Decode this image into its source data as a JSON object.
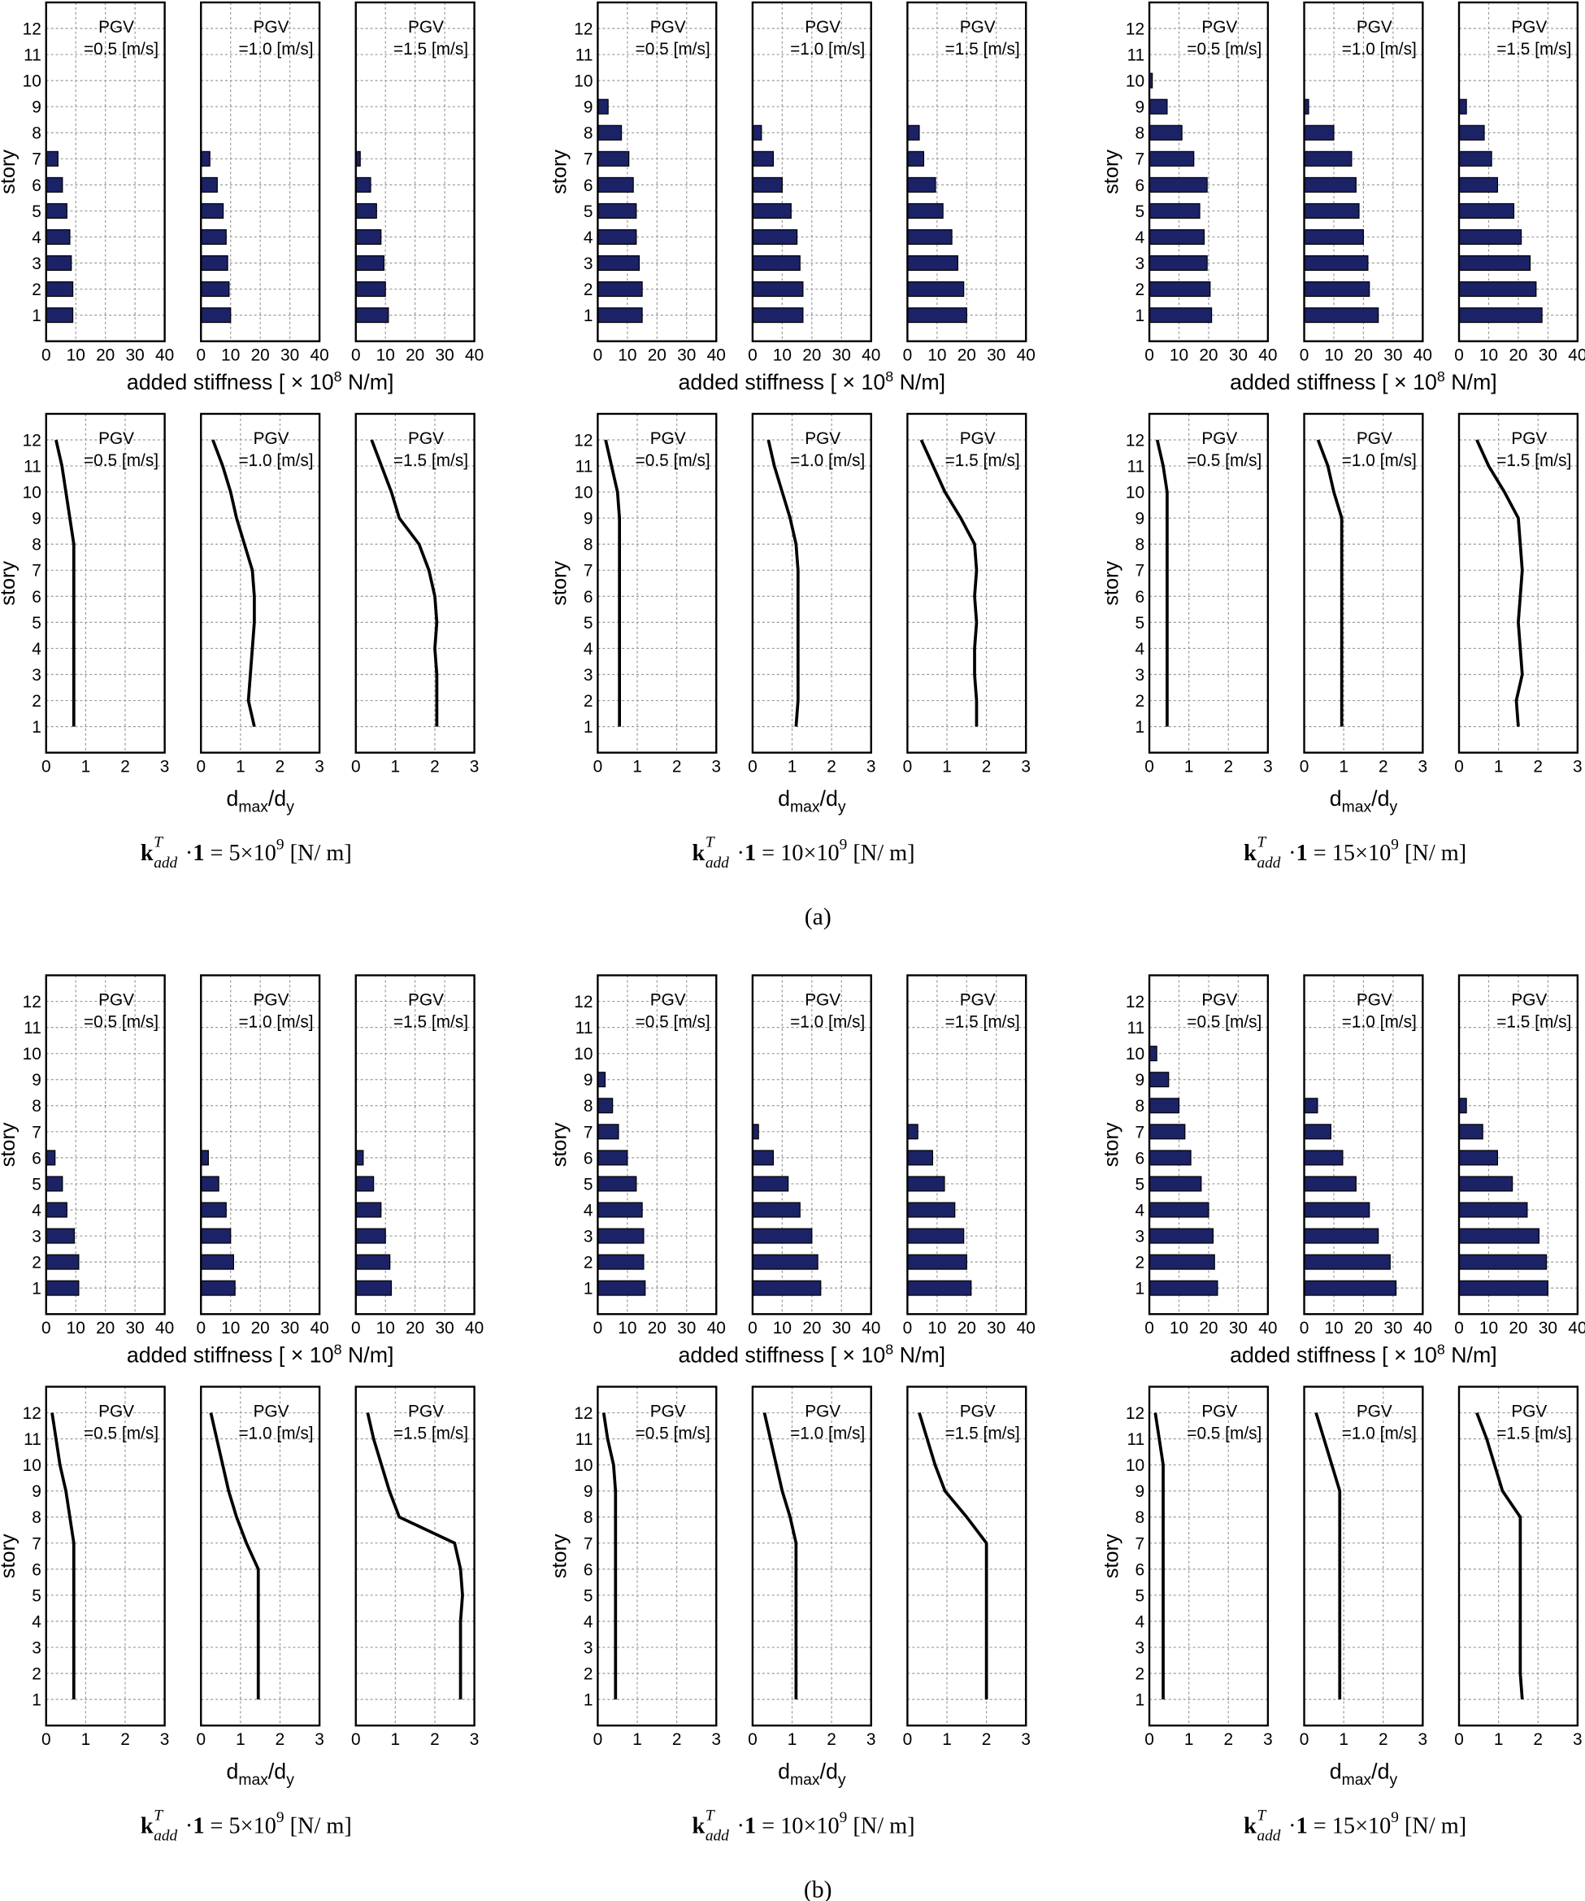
{
  "figure": {
    "story_axis": {
      "label": "story",
      "ylim": [
        0,
        13
      ],
      "yticks": [
        1,
        2,
        3,
        4,
        5,
        6,
        7,
        8,
        9,
        10,
        11,
        12
      ]
    },
    "bar_axis": {
      "xlim": [
        0,
        40
      ],
      "xticks": [
        0,
        10,
        20,
        30,
        40
      ],
      "label": {
        "text": "added stiffness [ × 10",
        "sup": "8",
        "rest": " N/m]"
      }
    },
    "line_axis": {
      "xlim": [
        0,
        3
      ],
      "xticks": [
        0,
        1,
        2,
        3
      ],
      "label": {
        "d": "d",
        "sub1": "max",
        "slash": "/d",
        "sub2": "y"
      }
    },
    "parts": [
      {
        "label": "(a)",
        "groups": [
          {
            "caption": {
              "k": "k",
              "sup": "T",
              "sub": "add",
              "mid": "·",
              "one": "1",
              "eq": " = 5×10",
              "exp": "9",
              "unit": " [N/ m]"
            },
            "bar_panels": [
              {
                "title": [
                  "PGV",
                  "=0.5 [m/s]"
                ],
                "values": [
                  9,
                  9,
                  8.5,
                  8,
                  7,
                  5.5,
                  4,
                  0,
                  0,
                  0,
                  0,
                  0
                ]
              },
              {
                "title": [
                  "PGV",
                  "=1.0 [m/s]"
                ],
                "values": [
                  10,
                  9.5,
                  9,
                  8.5,
                  7.5,
                  5.5,
                  3,
                  0,
                  0,
                  0,
                  0,
                  0
                ]
              },
              {
                "title": [
                  "PGV",
                  "=1.5 [m/s]"
                ],
                "values": [
                  11,
                  10,
                  9.5,
                  8.5,
                  7,
                  5,
                  1.5,
                  0,
                  0,
                  0,
                  0,
                  0
                ]
              }
            ],
            "line_panels": [
              {
                "title": [
                  "PGV",
                  "=0.5 [m/s]"
                ],
                "values": [
                  0.7,
                  0.7,
                  0.7,
                  0.7,
                  0.7,
                  0.7,
                  0.7,
                  0.7,
                  0.6,
                  0.5,
                  0.4,
                  0.25
                ]
              },
              {
                "title": [
                  "PGV",
                  "=1.0 [m/s]"
                ],
                "values": [
                  1.35,
                  1.2,
                  1.25,
                  1.3,
                  1.35,
                  1.35,
                  1.3,
                  1.1,
                  0.9,
                  0.75,
                  0.55,
                  0.3
                ]
              },
              {
                "title": [
                  "PGV",
                  "=1.5 [m/s]"
                ],
                "values": [
                  2.05,
                  2.05,
                  2.05,
                  2.0,
                  2.05,
                  2.0,
                  1.85,
                  1.6,
                  1.1,
                  0.9,
                  0.65,
                  0.4
                ]
              }
            ]
          },
          {
            "caption": {
              "k": "k",
              "sup": "T",
              "sub": "add",
              "mid": "·",
              "one": "1",
              "eq": " = 10×10",
              "exp": "9",
              "unit": " [N/ m]"
            },
            "bar_panels": [
              {
                "title": [
                  "PGV",
                  "=0.5 [m/s]"
                ],
                "values": [
                  15,
                  15,
                  14,
                  13,
                  13,
                  12,
                  10.5,
                  8,
                  3.5,
                  0,
                  0,
                  0
                ]
              },
              {
                "title": [
                  "PGV",
                  "=1.0 [m/s]"
                ],
                "values": [
                  17,
                  17,
                  16,
                  15,
                  13,
                  10,
                  7,
                  3,
                  0,
                  0,
                  0,
                  0
                ]
              },
              {
                "title": [
                  "PGV",
                  "=1.5 [m/s]"
                ],
                "values": [
                  20,
                  19,
                  17,
                  15,
                  12,
                  9.5,
                  5.5,
                  4,
                  0,
                  0,
                  0,
                  0
                ]
              }
            ],
            "line_panels": [
              {
                "title": [
                  "PGV",
                  "=0.5 [m/s]"
                ],
                "values": [
                  0.55,
                  0.55,
                  0.55,
                  0.55,
                  0.55,
                  0.55,
                  0.55,
                  0.55,
                  0.55,
                  0.5,
                  0.35,
                  0.2
                ]
              },
              {
                "title": [
                  "PGV",
                  "=1.0 [m/s]"
                ],
                "values": [
                  1.1,
                  1.15,
                  1.15,
                  1.15,
                  1.15,
                  1.15,
                  1.15,
                  1.1,
                  0.95,
                  0.75,
                  0.55,
                  0.4
                ]
              },
              {
                "title": [
                  "PGV",
                  "=1.5 [m/s]"
                ],
                "values": [
                  1.75,
                  1.75,
                  1.7,
                  1.7,
                  1.75,
                  1.7,
                  1.75,
                  1.7,
                  1.35,
                  0.95,
                  0.65,
                  0.35
                ]
              }
            ]
          },
          {
            "caption": {
              "k": "k",
              "sup": "T",
              "sub": "add",
              "mid": "·",
              "one": "1",
              "eq": " = 15×10",
              "exp": "9",
              "unit": " [N/ m]"
            },
            "bar_panels": [
              {
                "title": [
                  "PGV",
                  "=0.5 [m/s]"
                ],
                "values": [
                  21,
                  20.5,
                  19.5,
                  18.5,
                  17,
                  19.5,
                  15,
                  11,
                  6,
                  1,
                  0,
                  0
                ]
              },
              {
                "title": [
                  "PGV",
                  "=1.0 [m/s]"
                ],
                "values": [
                  25,
                  22,
                  21.5,
                  20,
                  18.5,
                  17.5,
                  16,
                  10,
                  1.5,
                  0,
                  0,
                  0
                ]
              },
              {
                "title": [
                  "PGV",
                  "=1.5 [m/s]"
                ],
                "values": [
                  28,
                  26,
                  24,
                  21,
                  18.5,
                  13,
                  11,
                  8.5,
                  2.5,
                  0,
                  0,
                  0
                ]
              }
            ],
            "line_panels": [
              {
                "title": [
                  "PGV",
                  "=0.5 [m/s]"
                ],
                "values": [
                  0.45,
                  0.45,
                  0.45,
                  0.45,
                  0.45,
                  0.45,
                  0.45,
                  0.45,
                  0.45,
                  0.45,
                  0.35,
                  0.2
                ]
              },
              {
                "title": [
                  "PGV",
                  "=1.0 [m/s]"
                ],
                "values": [
                  0.95,
                  0.95,
                  0.95,
                  0.95,
                  0.95,
                  0.95,
                  0.95,
                  0.95,
                  0.95,
                  0.75,
                  0.6,
                  0.35
                ]
              },
              {
                "title": [
                  "PGV",
                  "=1.5 [m/s]"
                ],
                "values": [
                  1.5,
                  1.45,
                  1.6,
                  1.55,
                  1.5,
                  1.55,
                  1.6,
                  1.55,
                  1.5,
                  1.15,
                  0.75,
                  0.45
                ]
              }
            ]
          }
        ]
      },
      {
        "label": "(b)",
        "groups": [
          {
            "caption": {
              "k": "k",
              "sup": "T",
              "sub": "add",
              "mid": "·",
              "one": "1",
              "eq": " = 5×10",
              "exp": "9",
              "unit": " [N/ m]"
            },
            "bar_panels": [
              {
                "title": [
                  "PGV",
                  "=0.5 [m/s]"
                ],
                "values": [
                  11,
                  11,
                  9.5,
                  7,
                  5.5,
                  3,
                  0,
                  0,
                  0,
                  0,
                  0,
                  0
                ]
              },
              {
                "title": [
                  "PGV",
                  "=1.0 [m/s]"
                ],
                "values": [
                  11.5,
                  11,
                  10,
                  8.5,
                  6,
                  2.5,
                  0,
                  0,
                  0,
                  0,
                  0,
                  0
                ]
              },
              {
                "title": [
                  "PGV",
                  "=1.5 [m/s]"
                ],
                "values": [
                  12,
                  11.5,
                  10,
                  8.5,
                  6,
                  2.5,
                  0,
                  0,
                  0,
                  0,
                  0,
                  0
                ]
              }
            ],
            "line_panels": [
              {
                "title": [
                  "PGV",
                  "=0.5 [m/s]"
                ],
                "values": [
                  0.7,
                  0.7,
                  0.7,
                  0.7,
                  0.7,
                  0.7,
                  0.7,
                  0.6,
                  0.5,
                  0.35,
                  0.25,
                  0.15
                ]
              },
              {
                "title": [
                  "PGV",
                  "=1.0 [m/s]"
                ],
                "values": [
                  1.45,
                  1.45,
                  1.45,
                  1.45,
                  1.45,
                  1.45,
                  1.15,
                  0.9,
                  0.7,
                  0.55,
                  0.4,
                  0.25
                ]
              },
              {
                "title": [
                  "PGV",
                  "=1.5 [m/s]"
                ],
                "values": [
                  2.65,
                  2.65,
                  2.65,
                  2.65,
                  2.7,
                  2.65,
                  2.5,
                  1.1,
                  0.85,
                  0.65,
                  0.45,
                  0.3
                ]
              }
            ]
          },
          {
            "caption": {
              "k": "k",
              "sup": "T",
              "sub": "add",
              "mid": "·",
              "one": "1",
              "eq": " = 10×10",
              "exp": "9",
              "unit": " [N/ m]"
            },
            "bar_panels": [
              {
                "title": [
                  "PGV",
                  "=0.5 [m/s]"
                ],
                "values": [
                  16,
                  15.5,
                  15.5,
                  15,
                  13,
                  10,
                  7,
                  5,
                  2.5,
                  0,
                  0,
                  0
                ]
              },
              {
                "title": [
                  "PGV",
                  "=1.0 [m/s]"
                ],
                "values": [
                  23,
                  22,
                  20,
                  16,
                  12,
                  7,
                  2,
                  0,
                  0,
                  0,
                  0,
                  0
                ]
              },
              {
                "title": [
                  "PGV",
                  "=1.5 [m/s]"
                ],
                "values": [
                  21.5,
                  20,
                  19,
                  16,
                  12.5,
                  8.5,
                  3.5,
                  0,
                  0,
                  0,
                  0,
                  0
                ]
              }
            ],
            "line_panels": [
              {
                "title": [
                  "PGV",
                  "=0.5 [m/s]"
                ],
                "values": [
                  0.45,
                  0.45,
                  0.45,
                  0.45,
                  0.45,
                  0.45,
                  0.45,
                  0.45,
                  0.45,
                  0.4,
                  0.25,
                  0.15
                ]
              },
              {
                "title": [
                  "PGV",
                  "=1.0 [m/s]"
                ],
                "values": [
                  1.1,
                  1.1,
                  1.1,
                  1.1,
                  1.1,
                  1.1,
                  1.1,
                  0.95,
                  0.75,
                  0.6,
                  0.45,
                  0.3
                ]
              },
              {
                "title": [
                  "PGV",
                  "=1.5 [m/s]"
                ],
                "values": [
                  2.0,
                  2.0,
                  2.0,
                  2.0,
                  2.0,
                  2.0,
                  2.0,
                  1.5,
                  0.95,
                  0.7,
                  0.5,
                  0.3
                ]
              }
            ]
          },
          {
            "caption": {
              "k": "k",
              "sup": "T",
              "sub": "add",
              "mid": "·",
              "one": "1",
              "eq": " = 15×10",
              "exp": "9",
              "unit": " [N/ m]"
            },
            "bar_panels": [
              {
                "title": [
                  "PGV",
                  "=0.5 [m/s]"
                ],
                "values": [
                  23,
                  22,
                  21.5,
                  20,
                  17.5,
                  14,
                  12,
                  10,
                  6.5,
                  2.5,
                  0,
                  0
                ]
              },
              {
                "title": [
                  "PGV",
                  "=1.0 [m/s]"
                ],
                "values": [
                  31,
                  29,
                  25,
                  22,
                  17.5,
                  13,
                  9,
                  4.5,
                  0,
                  0,
                  0,
                  0
                ]
              },
              {
                "title": [
                  "PGV",
                  "=1.5 [m/s]"
                ],
                "values": [
                  30,
                  29.5,
                  27,
                  23,
                  18,
                  13,
                  8,
                  2.5,
                  0,
                  0,
                  0,
                  0
                ]
              }
            ],
            "line_panels": [
              {
                "title": [
                  "PGV",
                  "=0.5 [m/s]"
                ],
                "values": [
                  0.35,
                  0.35,
                  0.35,
                  0.35,
                  0.35,
                  0.35,
                  0.35,
                  0.35,
                  0.35,
                  0.35,
                  0.25,
                  0.15
                ]
              },
              {
                "title": [
                  "PGV",
                  "=1.0 [m/s]"
                ],
                "values": [
                  0.9,
                  0.9,
                  0.9,
                  0.9,
                  0.9,
                  0.9,
                  0.9,
                  0.9,
                  0.9,
                  0.7,
                  0.5,
                  0.3
                ]
              },
              {
                "title": [
                  "PGV",
                  "=1.5 [m/s]"
                ],
                "values": [
                  1.6,
                  1.55,
                  1.55,
                  1.55,
                  1.55,
                  1.55,
                  1.55,
                  1.55,
                  1.1,
                  0.9,
                  0.7,
                  0.45
                ]
              }
            ]
          }
        ]
      }
    ]
  }
}
